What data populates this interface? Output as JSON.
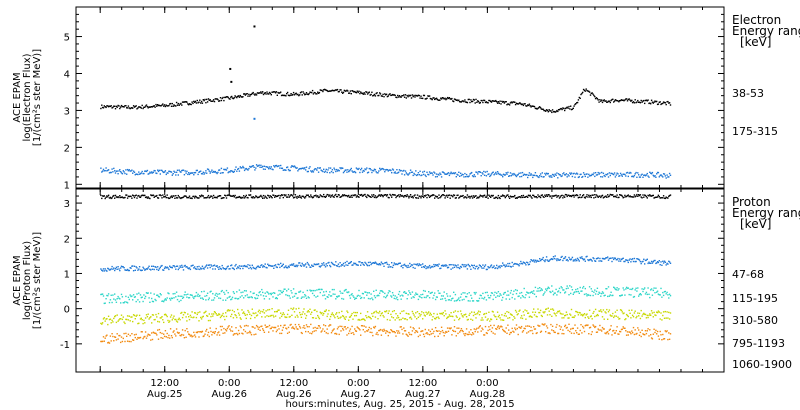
{
  "chart_data": [
    {
      "type": "scatter",
      "panel": "electron",
      "ylabel": [
        "ACE EPAM",
        "log(Electron Flux)",
        "[1/(cm²s ster MeV)]"
      ],
      "ylim": [
        0.9,
        5.8
      ],
      "yticks": [
        1,
        2,
        3,
        4,
        5
      ],
      "legend_title": [
        "Electron",
        "Energy ranges",
        "[keV]"
      ],
      "legend_position": "right",
      "series": [
        {
          "name": "38-53",
          "color": "#000000",
          "y_range": [
            2.8,
            3.7
          ],
          "points": [
            [
              0,
              3.12
            ],
            [
              6,
              3.1
            ],
            [
              12,
              3.15
            ],
            [
              18,
              3.25
            ],
            [
              24,
              3.35
            ],
            [
              30,
              3.5
            ],
            [
              36,
              3.45
            ],
            [
              42,
              3.55
            ],
            [
              48,
              3.5
            ],
            [
              54,
              3.42
            ],
            [
              60,
              3.38
            ],
            [
              66,
              3.3
            ],
            [
              72,
              3.25
            ],
            [
              78,
              3.2
            ],
            [
              84,
              3.0
            ],
            [
              88,
              3.1
            ],
            [
              90,
              3.6
            ],
            [
              93,
              3.25
            ],
            [
              96,
              3.3
            ],
            [
              102,
              3.25
            ],
            [
              106,
              3.2
            ]
          ]
        },
        {
          "name": "175-315",
          "color": "#1f78d6",
          "y_range": [
            1.1,
            1.6
          ],
          "points": [
            [
              0,
              1.4
            ],
            [
              6,
              1.35
            ],
            [
              12,
              1.33
            ],
            [
              18,
              1.35
            ],
            [
              24,
              1.4
            ],
            [
              30,
              1.5
            ],
            [
              36,
              1.45
            ],
            [
              42,
              1.4
            ],
            [
              48,
              1.4
            ],
            [
              54,
              1.38
            ],
            [
              60,
              1.3
            ],
            [
              66,
              1.28
            ],
            [
              72,
              1.3
            ],
            [
              78,
              1.28
            ],
            [
              84,
              1.25
            ],
            [
              90,
              1.28
            ],
            [
              96,
              1.27
            ],
            [
              102,
              1.28
            ],
            [
              106,
              1.25
            ]
          ]
        }
      ]
    },
    {
      "type": "scatter",
      "panel": "proton",
      "ylabel": [
        "ACE EPAM",
        "log(Proton Flux)",
        "[1/(cm²s ster MeV)]"
      ],
      "ylim": [
        -1.8,
        3.4
      ],
      "yticks": [
        -1,
        0,
        1,
        2,
        3
      ],
      "legend_title": [
        "Proton",
        "Energy ranges",
        "[keV]"
      ],
      "legend_position": "right",
      "series": [
        {
          "name": "47-68",
          "color": "#000000",
          "points": [
            [
              0,
              3.2
            ],
            [
              24,
              3.2
            ],
            [
              48,
              3.22
            ],
            [
              72,
              3.2
            ],
            [
              96,
              3.22
            ],
            [
              106,
              3.2
            ]
          ]
        },
        {
          "name": "115-195",
          "color": "#1f78d6",
          "points": [
            [
              0,
              1.15
            ],
            [
              12,
              1.18
            ],
            [
              24,
              1.2
            ],
            [
              36,
              1.25
            ],
            [
              48,
              1.3
            ],
            [
              60,
              1.22
            ],
            [
              72,
              1.2
            ],
            [
              78,
              1.3
            ],
            [
              84,
              1.45
            ],
            [
              96,
              1.42
            ],
            [
              102,
              1.35
            ],
            [
              106,
              1.3
            ]
          ]
        },
        {
          "name": "310-580",
          "color": "#2ed6c8",
          "points": [
            [
              0,
              0.3
            ],
            [
              12,
              0.35
            ],
            [
              24,
              0.4
            ],
            [
              36,
              0.45
            ],
            [
              48,
              0.42
            ],
            [
              60,
              0.4
            ],
            [
              72,
              0.35
            ],
            [
              84,
              0.55
            ],
            [
              96,
              0.5
            ],
            [
              106,
              0.45
            ]
          ]
        },
        {
          "name": "795-1193",
          "color": "#c8d800",
          "points": [
            [
              0,
              -0.3
            ],
            [
              12,
              -0.25
            ],
            [
              24,
              -0.15
            ],
            [
              36,
              -0.1
            ],
            [
              48,
              -0.2
            ],
            [
              60,
              -0.15
            ],
            [
              72,
              -0.2
            ],
            [
              84,
              -0.1
            ],
            [
              96,
              -0.15
            ],
            [
              106,
              -0.2
            ]
          ]
        },
        {
          "name": "1060-1900",
          "color": "#f28a10",
          "points": [
            [
              0,
              -0.85
            ],
            [
              12,
              -0.7
            ],
            [
              24,
              -0.6
            ],
            [
              36,
              -0.55
            ],
            [
              48,
              -0.6
            ],
            [
              60,
              -0.65
            ],
            [
              72,
              -0.6
            ],
            [
              84,
              -0.55
            ],
            [
              96,
              -0.6
            ],
            [
              106,
              -0.75
            ]
          ]
        }
      ]
    }
  ],
  "xaxis": {
    "xlabel": "hours:minutes, Aug. 25, 2015 - Aug. 28, 2015",
    "xlim_hours": [
      -4.5,
      116
    ],
    "ticks": [
      {
        "hour": 0,
        "time": "",
        "date": ""
      },
      {
        "hour": 12,
        "time": "12:00",
        "date": "Aug.25"
      },
      {
        "hour": 24,
        "time": "0:00",
        "date": "Aug.26"
      },
      {
        "hour": 36,
        "time": "12:00",
        "date": "Aug.26"
      },
      {
        "hour": 48,
        "time": "0:00",
        "date": "Aug.27"
      },
      {
        "hour": 60,
        "time": "12:00",
        "date": "Aug.27"
      },
      {
        "hour": 72,
        "time": "0:00",
        "date": "Aug.28"
      }
    ]
  }
}
